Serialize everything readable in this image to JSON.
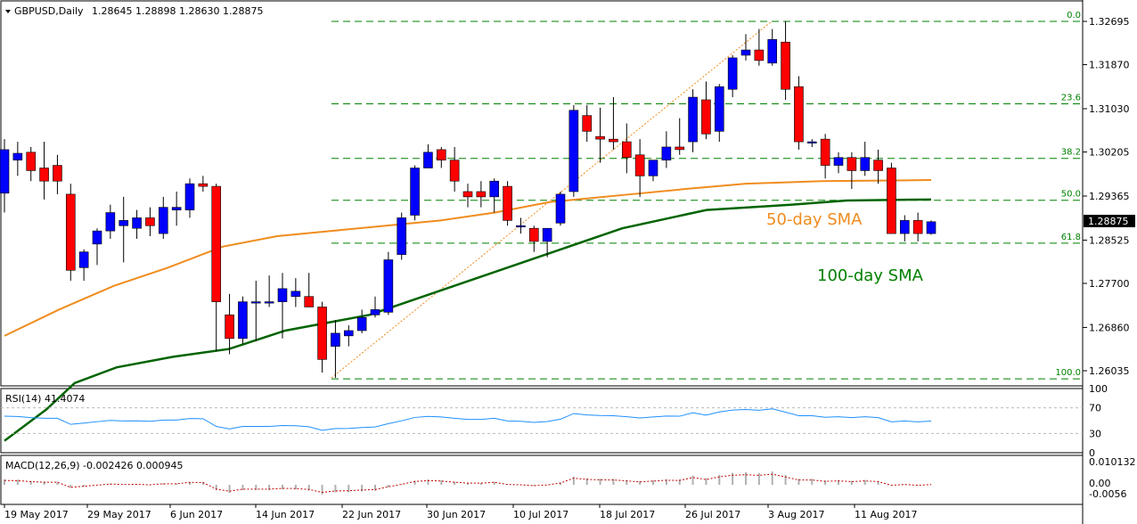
{
  "header": {
    "symbol": "GBPUSD,Daily",
    "ohlc": "1.28645 1.28898 1.28630 1.28875"
  },
  "rsi_panel": {
    "label": "RSI(14) 41.4074"
  },
  "macd_panel": {
    "label": "MACD(12,26,9) -0.002426 0.000945"
  },
  "annotations": {
    "sma50": "50-day SMA",
    "sma100": "100-day SMA"
  },
  "current_price": "1.28875",
  "colors": {
    "bull": "#0000ff",
    "bear": "#ff0000",
    "sma50": "#f08c1e",
    "sma100": "#006400",
    "grid": "#008000",
    "rsi": "#1e90ff",
    "macd": "#b0b0b0",
    "signal": "#c00000"
  },
  "chart_data": {
    "type": "candlestick",
    "price_axis": {
      "min": 1.2595,
      "max": 1.3274,
      "ticks": [
        "1.32695",
        "1.31870",
        "1.31030",
        "1.30205",
        "1.29365",
        "1.28525",
        "1.27700",
        "1.26860",
        "1.26035"
      ]
    },
    "date_labels": [
      "19 May 2017",
      "29 May 2017",
      "6 Jun 2017",
      "14 Jun 2017",
      "22 Jun 2017",
      "30 Jun 2017",
      "10 Jul 2017",
      "18 Jul 2017",
      "26 Jul 2017",
      "3 Aug 2017",
      "11 Aug 2017"
    ],
    "fibonacci": [
      {
        "level": "0.0",
        "price": 1.32695
      },
      {
        "level": "23.6",
        "price": 1.31123
      },
      {
        "level": "38.2",
        "price": 1.30083
      },
      {
        "level": "50.0",
        "price": 1.29285
      },
      {
        "level": "61.8",
        "price": 1.28466
      },
      {
        "level": "100.0",
        "price": 1.2588
      }
    ],
    "candles": [
      [
        1.2942,
        1.3045,
        1.2905,
        1.3025
      ],
      [
        1.3005,
        1.304,
        1.2975,
        1.3018
      ],
      [
        1.302,
        1.303,
        1.2965,
        1.2985
      ],
      [
        1.299,
        1.304,
        1.293,
        1.2965
      ],
      [
        1.2995,
        1.3015,
        1.294,
        1.2965
      ],
      [
        1.294,
        1.296,
        1.2775,
        1.2795
      ],
      [
        1.28,
        1.2835,
        1.2775,
        1.283
      ],
      [
        1.2845,
        1.2875,
        1.2805,
        1.287
      ],
      [
        1.287,
        1.292,
        1.2855,
        1.2905
      ],
      [
        1.288,
        1.2935,
        1.281,
        1.289
      ],
      [
        1.2875,
        1.291,
        1.2855,
        1.2895
      ],
      [
        1.2895,
        1.2915,
        1.286,
        1.288
      ],
      [
        1.2865,
        1.2935,
        1.2855,
        1.2915
      ],
      [
        1.291,
        1.2945,
        1.288,
        1.2915
      ],
      [
        1.291,
        1.297,
        1.2895,
        1.296
      ],
      [
        1.296,
        1.2975,
        1.2945,
        1.2955
      ],
      [
        1.2955,
        1.296,
        1.264,
        1.2735
      ],
      [
        1.271,
        1.275,
        1.2635,
        1.2665
      ],
      [
        1.2665,
        1.2745,
        1.2655,
        1.2735
      ],
      [
        1.2735,
        1.2775,
        1.266,
        1.2735
      ],
      [
        1.2735,
        1.2785,
        1.2725,
        1.2735
      ],
      [
        1.2735,
        1.279,
        1.2665,
        1.276
      ],
      [
        1.2745,
        1.278,
        1.2725,
        1.2755
      ],
      [
        1.2745,
        1.279,
        1.2725,
        1.2725
      ],
      [
        1.2725,
        1.2735,
        1.26,
        1.2625
      ],
      [
        1.265,
        1.27,
        1.259,
        1.2675
      ],
      [
        1.267,
        1.269,
        1.265,
        1.268
      ],
      [
        1.268,
        1.272,
        1.2675,
        1.2705
      ],
      [
        1.271,
        1.2745,
        1.2705,
        1.272
      ],
      [
        1.2715,
        1.283,
        1.271,
        1.2815
      ],
      [
        1.2825,
        1.2905,
        1.2815,
        1.2895
      ],
      [
        1.29,
        1.2995,
        1.289,
        1.299
      ],
      [
        1.299,
        1.3035,
        1.299,
        1.302
      ],
      [
        1.3025,
        1.303,
        1.299,
        1.3005
      ],
      [
        1.3005,
        1.303,
        1.2945,
        1.2965
      ],
      [
        1.2945,
        1.296,
        1.2915,
        1.2935
      ],
      [
        1.2945,
        1.2965,
        1.2915,
        1.2935
      ],
      [
        1.2935,
        1.297,
        1.2905,
        1.2965
      ],
      [
        1.2955,
        1.2965,
        1.288,
        1.289
      ],
      [
        1.288,
        1.2895,
        1.2865,
        1.288
      ],
      [
        1.2875,
        1.288,
        1.283,
        1.285
      ],
      [
        1.285,
        1.2875,
        1.282,
        1.2875
      ],
      [
        1.2885,
        1.2945,
        1.288,
        1.294
      ],
      [
        1.2945,
        1.311,
        1.2935,
        1.31
      ],
      [
        1.309,
        1.311,
        1.304,
        1.306
      ],
      [
        1.305,
        1.3105,
        1.3,
        1.3045
      ],
      [
        1.3045,
        1.3125,
        1.3025,
        1.304
      ],
      [
        1.304,
        1.3075,
        1.298,
        1.301
      ],
      [
        1.3015,
        1.3045,
        1.2935,
        1.2975
      ],
      [
        1.2975,
        1.3005,
        1.2965,
        1.3005
      ],
      [
        1.3005,
        1.306,
        1.299,
        1.303
      ],
      [
        1.303,
        1.3085,
        1.3015,
        1.3025
      ],
      [
        1.304,
        1.314,
        1.302,
        1.3125
      ],
      [
        1.312,
        1.3155,
        1.3045,
        1.3055
      ],
      [
        1.306,
        1.315,
        1.304,
        1.3145
      ],
      [
        1.314,
        1.3205,
        1.3125,
        1.32
      ],
      [
        1.3205,
        1.3245,
        1.3195,
        1.3215
      ],
      [
        1.3215,
        1.3255,
        1.3185,
        1.3195
      ],
      [
        1.319,
        1.3255,
        1.3185,
        1.3235
      ],
      [
        1.323,
        1.327,
        1.312,
        1.314
      ],
      [
        1.3145,
        1.3165,
        1.3025,
        1.304
      ],
      [
        1.304,
        1.3045,
        1.303,
        1.304
      ],
      [
        1.3045,
        1.3055,
        1.297,
        1.2995
      ],
      [
        1.2995,
        1.302,
        1.298,
        1.301
      ],
      [
        1.301,
        1.302,
        1.295,
        1.2985
      ],
      [
        1.2985,
        1.304,
        1.2975,
        1.301
      ],
      [
        1.3005,
        1.3025,
        1.296,
        1.2985
      ],
      [
        1.299,
        1.3,
        1.2865,
        1.2865
      ],
      [
        1.2865,
        1.29,
        1.285,
        1.289
      ],
      [
        1.289,
        1.2905,
        1.285,
        1.2865
      ],
      [
        1.2865,
        1.289,
        1.2863,
        1.28875
      ]
    ],
    "sma50": [
      [
        0,
        1.267
      ],
      [
        10,
        1.272
      ],
      [
        20,
        1.2765
      ],
      [
        30,
        1.28
      ],
      [
        40,
        1.284
      ],
      [
        50,
        1.286
      ],
      [
        60,
        1.287
      ],
      [
        70,
        1.288
      ],
      [
        80,
        1.289
      ],
      [
        90,
        1.2905
      ],
      [
        100,
        1.2925
      ],
      [
        115,
        1.294
      ],
      [
        125,
        1.295
      ],
      [
        136,
        1.296
      ],
      [
        150,
        1.2965
      ],
      [
        170,
        1.2967
      ]
    ],
    "sma100": [
      [
        0,
        1.247
      ],
      [
        15,
        1.253
      ],
      [
        25,
        1.258
      ],
      [
        40,
        1.261
      ],
      [
        60,
        1.263
      ],
      [
        80,
        1.2645
      ],
      [
        100,
        1.268
      ],
      [
        130,
        1.271
      ],
      [
        160,
        1.2765
      ],
      [
        190,
        1.282
      ],
      [
        220,
        1.2875
      ],
      [
        250,
        1.291
      ],
      [
        280,
        1.292
      ],
      [
        300,
        1.2928
      ],
      [
        330,
        1.293
      ]
    ],
    "rsi_axis": {
      "ticks": [
        "100",
        "70",
        "30",
        "0"
      ]
    },
    "macd_axis": {
      "ticks": [
        "0.010132",
        "0.00",
        "-0.0056"
      ]
    }
  }
}
